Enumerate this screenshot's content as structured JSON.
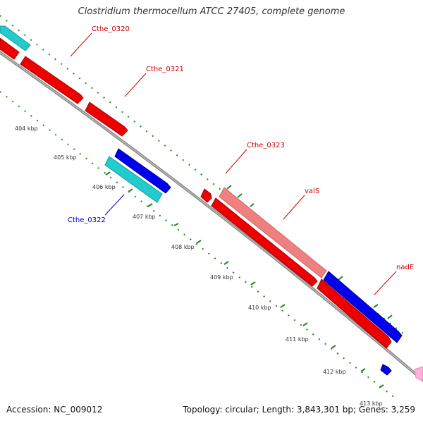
{
  "title": "Clostridium thermocellum ATCC 27405, complete genome",
  "footer": {
    "accession": "Accession: NC_009012",
    "summary": "Topology: circular; Length: 3,843,301 bp; Genes: 3,259"
  },
  "colors": {
    "forward_cds": "#ee0000",
    "reverse_cds": "#0000ee",
    "forward_label": "#cc0000",
    "reverse_label": "#0000cc",
    "rna": "#00cccc",
    "pseudo": "#f08080",
    "backbone": "#888888",
    "gc_skew": "#228822",
    "other": "#ffb0e0"
  },
  "ticks": [
    "404 kbp",
    "405 kbp",
    "406 kbp",
    "407 kbp",
    "408 kbp",
    "409 kbp",
    "410 kbp",
    "411 kbp",
    "412 kbp",
    "413 kbp"
  ],
  "gene_labels": {
    "cthe_0320": "Cthe_0320",
    "cthe_0321": "Cthe_0321",
    "cthe_0322": "Cthe_0322",
    "cthe_0323": "Cthe_0323",
    "vals": "valS",
    "nade": "nadE"
  }
}
